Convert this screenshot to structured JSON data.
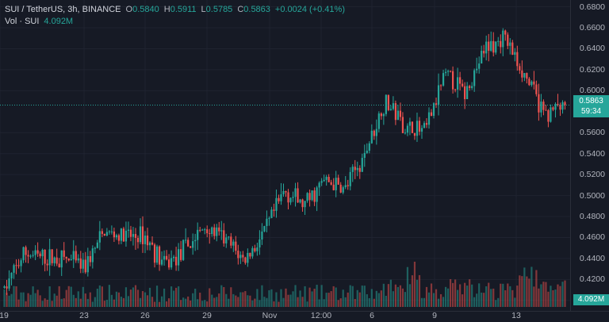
{
  "legend": {
    "symbol": "SUI / TetherUS, 3h, BINANCE",
    "o_label": "O",
    "o_value": "0.5840",
    "h_label": "H",
    "h_value": "0.5911",
    "l_label": "L",
    "l_value": "0.5785",
    "c_label": "C",
    "c_value": "0.5863",
    "change": "+0.0024 (+0.41%)",
    "vol_label": "Vol · SUI",
    "vol_value": "4.092M"
  },
  "price_axis": {
    "ticks": [
      "0.6800",
      "0.6600",
      "0.6400",
      "0.6200",
      "0.6000",
      "0.5600",
      "0.5400",
      "0.5200",
      "0.5000",
      "0.4800",
      "0.4600",
      "0.4400",
      "0.4200",
      "0.4000"
    ]
  },
  "current_price": {
    "price": "0.5863",
    "countdown": "59:34"
  },
  "volume_badge": "4.092M",
  "time_axis": {
    "ticks": [
      "19",
      "23",
      "26",
      "29",
      "Nov",
      "12:00",
      "6",
      "9",
      "13"
    ]
  },
  "colors": {
    "up": "#26a69a",
    "down": "#ef5350",
    "background": "#161a25",
    "grid": "#1f2330",
    "text": "#b2b5be"
  },
  "chart_data": {
    "type": "candlestick",
    "symbol": "SUI / TetherUS",
    "interval": "3h",
    "exchange": "BINANCE",
    "ylim": [
      0.39,
      0.685
    ],
    "last_close": 0.5863,
    "price_path": [
      {
        "x": "23",
        "y": 0.41
      },
      {
        "x": "24",
        "y": 0.445
      },
      {
        "x": "25",
        "y": 0.44
      },
      {
        "x": "26",
        "y": 0.44
      },
      {
        "x": "27",
        "y": 0.432
      },
      {
        "x": "28",
        "y": 0.465
      },
      {
        "x": "29",
        "y": 0.46
      },
      {
        "x": "30",
        "y": 0.462
      },
      {
        "x": "31",
        "y": 0.433
      },
      {
        "x": "Nov",
        "y": 0.448
      },
      {
        "x": "2",
        "y": 0.47
      },
      {
        "x": "3",
        "y": 0.458
      },
      {
        "x": "12:00",
        "y": 0.438
      },
      {
        "x": "5",
        "y": 0.465
      },
      {
        "x": "5b",
        "y": 0.505
      },
      {
        "x": "6",
        "y": 0.49
      },
      {
        "x": "7",
        "y": 0.515
      },
      {
        "x": "8",
        "y": 0.505
      },
      {
        "x": "8b",
        "y": 0.54
      },
      {
        "x": "9",
        "y": 0.59
      },
      {
        "x": "9b",
        "y": 0.565
      },
      {
        "x": "10",
        "y": 0.56
      },
      {
        "x": "11",
        "y": 0.615
      },
      {
        "x": "12",
        "y": 0.598
      },
      {
        "x": "13",
        "y": 0.64
      },
      {
        "x": "13b",
        "y": 0.65
      },
      {
        "x": "14",
        "y": 0.615
      },
      {
        "x": "15",
        "y": 0.578
      },
      {
        "x": "16",
        "y": 0.5863
      }
    ]
  }
}
